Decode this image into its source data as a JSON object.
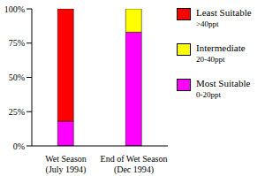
{
  "chart_data": {
    "type": "bar",
    "stacked": true,
    "grid": false,
    "legend": "right",
    "categories": [
      "Wet Season (July 1994)",
      "End of Wet Season (Dec 1994)"
    ],
    "series": [
      {
        "name": "Most Suitable",
        "annotation": "0-20ppt",
        "color": "#ff00ff",
        "values": [
          18,
          83
        ]
      },
      {
        "name": "Intermediate",
        "annotation": "20-40ppt",
        "color": "#ffff00",
        "values": [
          0,
          17
        ]
      },
      {
        "name": "Least Suitable",
        "annotation": ">40ppt",
        "color": "#ff0000",
        "values": [
          82,
          0
        ]
      }
    ],
    "ylim": [
      0,
      100
    ],
    "yticks": [
      {
        "value": 0,
        "label": "0%"
      },
      {
        "value": 25,
        "label": "25%"
      },
      {
        "value": 50,
        "label": "50%"
      },
      {
        "value": 75,
        "label": "75%"
      },
      {
        "value": 100,
        "label": "100%"
      }
    ]
  }
}
